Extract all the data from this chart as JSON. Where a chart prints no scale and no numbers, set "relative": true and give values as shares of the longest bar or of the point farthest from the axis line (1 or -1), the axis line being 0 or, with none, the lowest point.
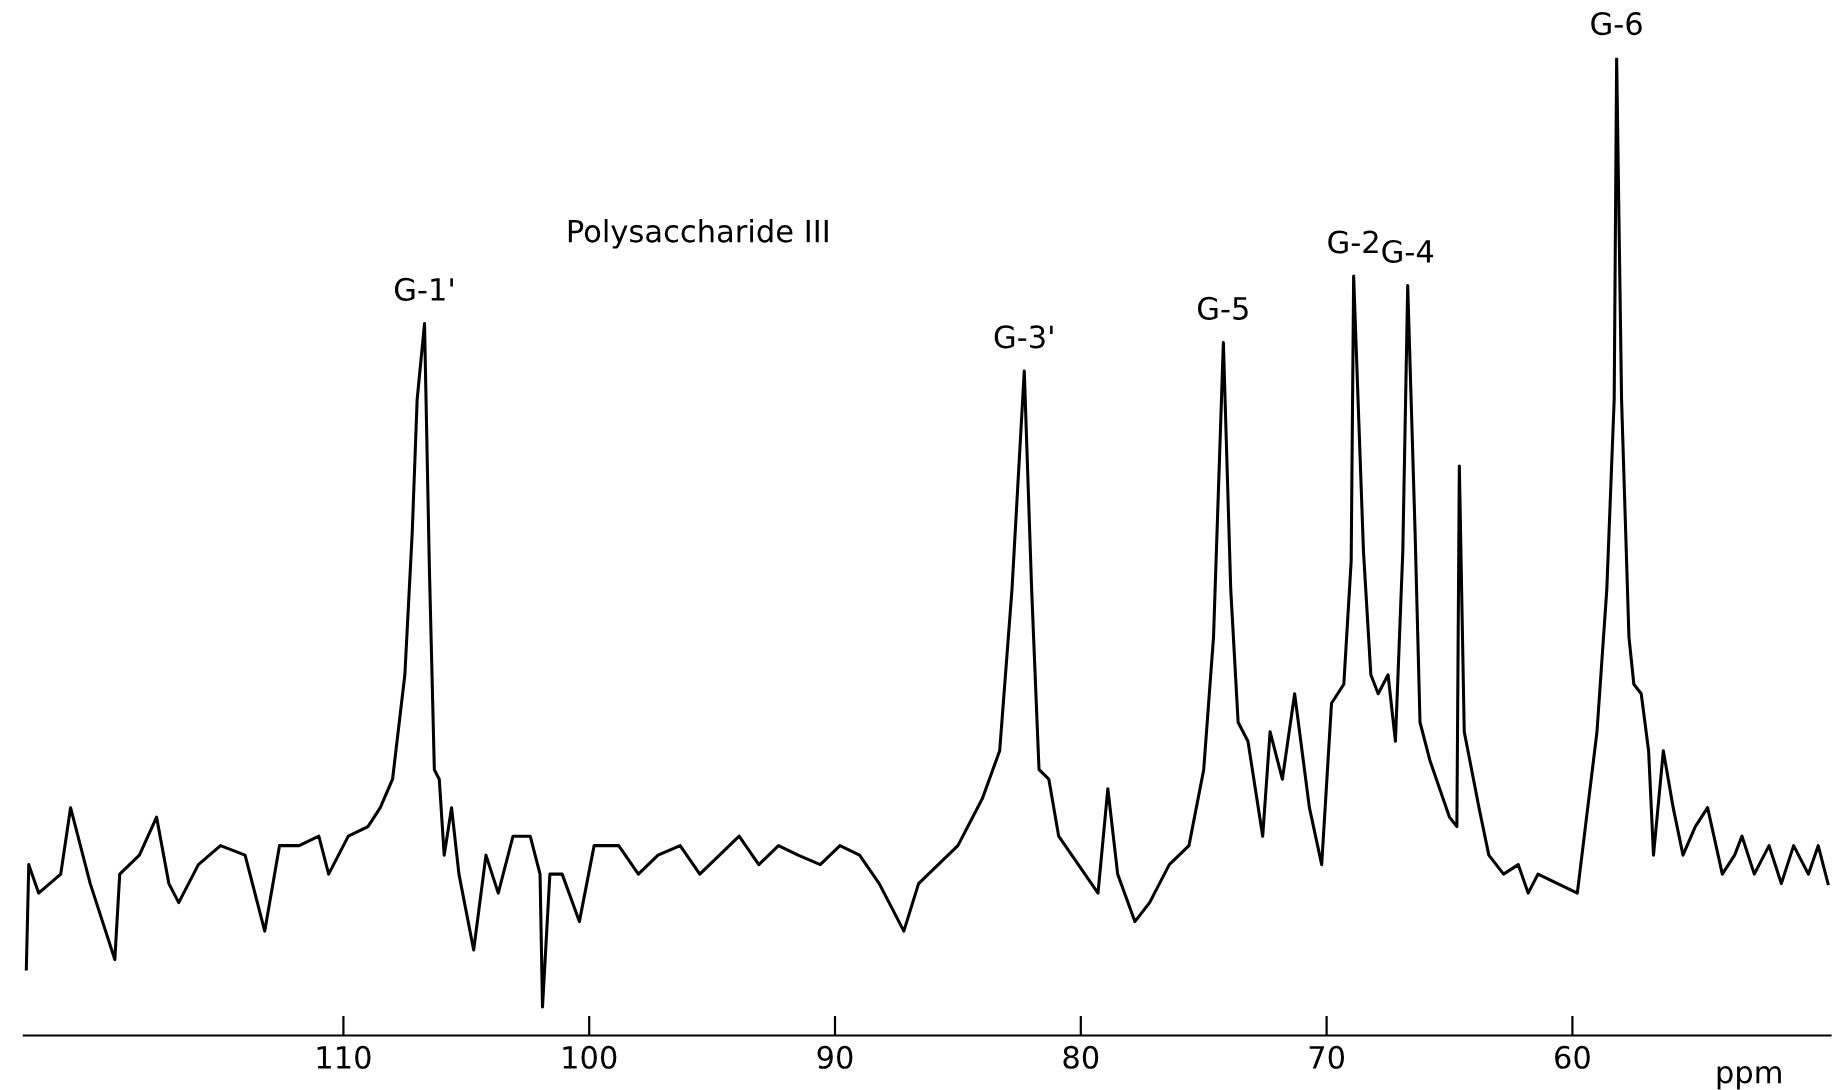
{
  "chart_data": {
    "type": "line",
    "relative": true,
    "xlabel": "ppm",
    "xlim": [
      123,
      49.5
    ],
    "xticks": [
      110,
      100,
      90,
      80,
      70,
      60
    ],
    "annotations": [
      {
        "text": "G-1'",
        "x": 106.7,
        "y": 0.72
      },
      {
        "text": "G-3'",
        "x": 82.3,
        "y": 0.67
      },
      {
        "text": "G-5",
        "x": 74.2,
        "y": 0.7
      },
      {
        "text": "G-2",
        "x": 68.9,
        "y": 0.77
      },
      {
        "text": "G-4",
        "x": 66.7,
        "y": 0.76
      },
      {
        "text": "G-6",
        "x": 58.2,
        "y": 1
      },
      "Polysaccharide III"
    ],
    "series": [
      {
        "color": "#000000",
        "x": [
          122.9,
          122.8,
          122.4,
          121.5,
          121.1,
          120.3,
          119.3,
          119.1,
          118.3,
          117.6,
          117.1,
          116.7,
          115.9,
          115.0,
          114.0,
          113.2,
          112.6,
          111.8,
          111.0,
          110.6,
          109.8,
          109.0,
          108.5,
          108.0,
          107.5,
          107.2,
          107.0,
          106.7,
          106.5,
          106.3,
          106.1,
          105.9,
          105.6,
          105.3,
          104.7,
          104.2,
          103.7,
          103.1,
          102.4,
          102.0,
          101.9,
          101.6,
          101.1,
          100.4,
          99.8,
          98.8,
          98.0,
          97.2,
          96.3,
          95.5,
          94.7,
          93.9,
          93.1,
          92.3,
          91.5,
          90.6,
          89.8,
          89.0,
          88.2,
          87.2,
          86.6,
          85.8,
          85.0,
          84.0,
          83.3,
          82.8,
          82.3,
          82.0,
          81.7,
          81.3,
          80.9,
          80.1,
          79.3,
          78.9,
          78.5,
          77.8,
          77.2,
          76.4,
          75.6,
          75.0,
          74.6,
          74.2,
          73.9,
          73.6,
          73.2,
          72.6,
          72.3,
          71.8,
          71.3,
          70.7,
          70.2,
          69.8,
          69.3,
          69.0,
          68.9,
          68.5,
          68.2,
          67.9,
          67.5,
          67.2,
          66.9,
          66.7,
          66.4,
          66.2,
          65.8,
          65.4,
          65.0,
          64.7,
          64.6,
          64.4,
          63.8,
          63.4,
          62.8,
          62.2,
          61.8,
          61.4,
          60.6,
          59.8,
          59.0,
          58.6,
          58.3,
          58.2,
          58.0,
          57.7,
          57.5,
          57.2,
          56.9,
          56.7,
          56.3,
          55.9,
          55.5,
          55.0,
          54.5,
          53.9,
          53.4,
          53.1,
          52.6,
          52.0,
          51.5,
          51.0,
          50.4,
          50.0,
          49.6
        ],
        "values": [
          0.04,
          0.15,
          0.12,
          0.14,
          0.21,
          0.13,
          0.05,
          0.14,
          0.16,
          0.2,
          0.13,
          0.11,
          0.15,
          0.17,
          0.16,
          0.08,
          0.17,
          0.17,
          0.18,
          0.14,
          0.18,
          0.19,
          0.21,
          0.24,
          0.35,
          0.5,
          0.64,
          0.72,
          0.46,
          0.25,
          0.24,
          0.16,
          0.21,
          0.14,
          0.06,
          0.16,
          0.12,
          0.18,
          0.18,
          0.14,
          0,
          0.14,
          0.14,
          0.09,
          0.17,
          0.17,
          0.14,
          0.16,
          0.17,
          0.14,
          0.16,
          0.18,
          0.15,
          0.17,
          0.16,
          0.15,
          0.17,
          0.16,
          0.13,
          0.08,
          0.13,
          0.15,
          0.17,
          0.22,
          0.27,
          0.44,
          0.67,
          0.44,
          0.25,
          0.24,
          0.18,
          0.15,
          0.12,
          0.23,
          0.14,
          0.09,
          0.11,
          0.15,
          0.17,
          0.25,
          0.39,
          0.7,
          0.44,
          0.3,
          0.28,
          0.18,
          0.29,
          0.24,
          0.33,
          0.21,
          0.15,
          0.32,
          0.34,
          0.47,
          0.77,
          0.48,
          0.35,
          0.33,
          0.35,
          0.28,
          0.48,
          0.76,
          0.5,
          0.3,
          0.26,
          0.23,
          0.2,
          0.19,
          0.57,
          0.29,
          0.21,
          0.16,
          0.14,
          0.15,
          0.12,
          0.14,
          0.13,
          0.12,
          0.29,
          0.44,
          0.64,
          1,
          0.64,
          0.39,
          0.34,
          0.33,
          0.27,
          0.16,
          0.27,
          0.21,
          0.16,
          0.19,
          0.21,
          0.14,
          0.16,
          0.18,
          0.14,
          0.17,
          0.13,
          0.17,
          0.14,
          0.17,
          0.13
        ]
      }
    ]
  }
}
